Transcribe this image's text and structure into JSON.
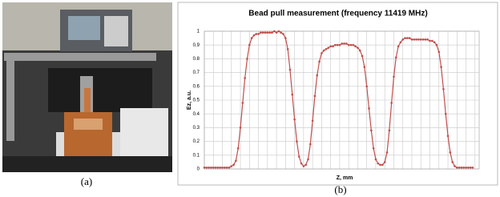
{
  "captions": {
    "a": "(a)",
    "b": "(b)"
  },
  "chart_data": {
    "type": "line",
    "title": "Bead pull measurement (frequency 11419 MHz)",
    "xlabel": "Z, mm",
    "ylabel": "Ez, a.u.",
    "ylim": [
      0,
      1
    ],
    "yticks": [
      0,
      0.1,
      0.2,
      0.3,
      0.4,
      0.5,
      0.6,
      0.7,
      0.8,
      0.9,
      1
    ],
    "grid": true,
    "series": [
      {
        "color": "#c0504d",
        "values": [
          0.01,
          0.01,
          0.01,
          0.01,
          0.01,
          0.01,
          0.01,
          0.01,
          0.01,
          0.01,
          0.01,
          0.01,
          0.02,
          0.03,
          0.06,
          0.15,
          0.3,
          0.48,
          0.66,
          0.8,
          0.9,
          0.95,
          0.97,
          0.98,
          0.98,
          0.99,
          0.99,
          0.99,
          0.99,
          0.99,
          0.99,
          1.0,
          0.99,
          1.0,
          0.99,
          0.98,
          0.95,
          0.87,
          0.72,
          0.54,
          0.36,
          0.2,
          0.09,
          0.04,
          0.02,
          0.03,
          0.07,
          0.18,
          0.35,
          0.53,
          0.68,
          0.78,
          0.84,
          0.86,
          0.87,
          0.88,
          0.89,
          0.89,
          0.9,
          0.9,
          0.9,
          0.91,
          0.91,
          0.91,
          0.9,
          0.9,
          0.9,
          0.89,
          0.88,
          0.86,
          0.82,
          0.74,
          0.6,
          0.44,
          0.28,
          0.15,
          0.07,
          0.04,
          0.03,
          0.03,
          0.05,
          0.12,
          0.28,
          0.48,
          0.67,
          0.81,
          0.89,
          0.92,
          0.94,
          0.95,
          0.95,
          0.95,
          0.94,
          0.94,
          0.94,
          0.94,
          0.94,
          0.94,
          0.94,
          0.94,
          0.93,
          0.93,
          0.92,
          0.9,
          0.85,
          0.74,
          0.58,
          0.4,
          0.24,
          0.12,
          0.05,
          0.02,
          0.01,
          0.01,
          0.01,
          0.01,
          0.01,
          0.01,
          0.01,
          0.01
        ]
      }
    ]
  }
}
